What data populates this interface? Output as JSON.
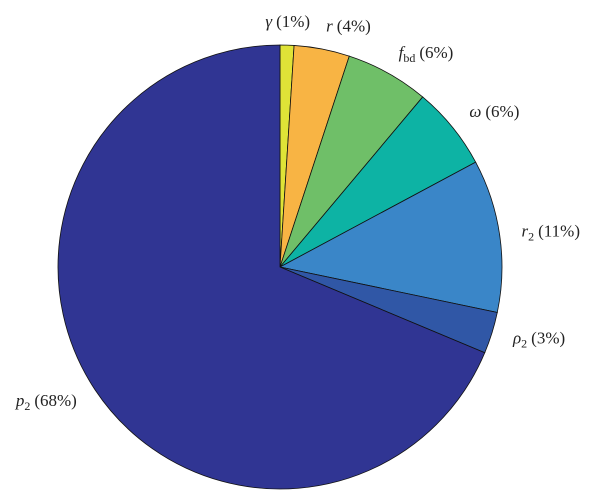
{
  "chart_data": {
    "type": "pie",
    "categories": [
      "γ",
      "r",
      "f",
      "ω",
      "r",
      "ρ",
      "p"
    ],
    "subscripts": [
      null,
      null,
      "bd",
      null,
      "2",
      "2",
      "2"
    ],
    "values": [
      1,
      4,
      6,
      6,
      11,
      3,
      68
    ],
    "value_labels": [
      "(1%)",
      "(4%)",
      "(6%)",
      "(6%)",
      "(11%)",
      "(3%)",
      "(68%)"
    ],
    "colors": [
      "#dfe337",
      "#f8b444",
      "#6fbf68",
      "#0db3a4",
      "#3a86c8",
      "#3057a6",
      "#303593"
    ]
  }
}
